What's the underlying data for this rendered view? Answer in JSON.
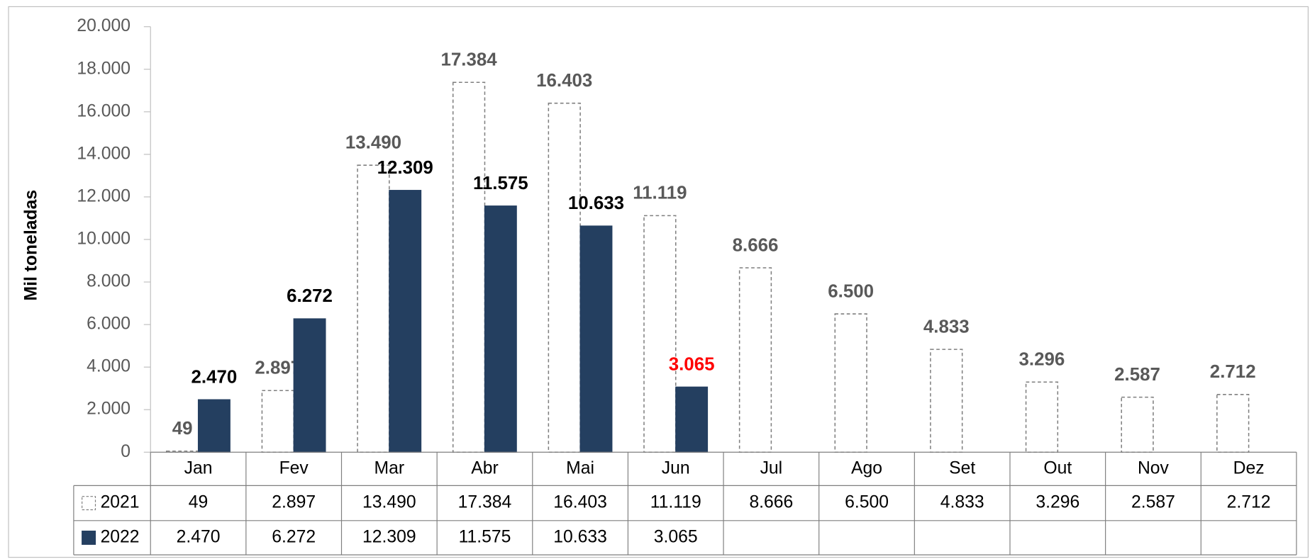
{
  "chart_data": {
    "type": "bar",
    "y_label": "Mil toneladas",
    "categories": [
      "Jan",
      "Fev",
      "Mar",
      "Abr",
      "Mai",
      "Jun",
      "Jul",
      "Ago",
      "Set",
      "Out",
      "Nov",
      "Dez"
    ],
    "series": [
      {
        "name": "2021",
        "color": "#ffffff",
        "stroke": "#7f7f7f",
        "dashed": true,
        "label_color": "#595959",
        "values": [
          49,
          2897,
          13490,
          17384,
          16403,
          11119,
          8666,
          6500,
          4833,
          3296,
          2587,
          2712
        ],
        "value_labels": [
          "49",
          "2.897",
          "13.490",
          "17.384",
          "16.403",
          "11.119",
          "8.666",
          "6.500",
          "4.833",
          "3.296",
          "2.587",
          "2.712"
        ]
      },
      {
        "name": "2022",
        "color": "#243f60",
        "stroke": "#243f60",
        "dashed": false,
        "label_color": "#000000",
        "label_colors": [
          null,
          null,
          null,
          null,
          null,
          "#ff0000",
          null,
          null,
          null,
          null,
          null,
          null
        ],
        "values": [
          2470,
          6272,
          12309,
          11575,
          10633,
          3065,
          null,
          null,
          null,
          null,
          null,
          null
        ],
        "value_labels": [
          "2.470",
          "6.272",
          "12.309",
          "11.575",
          "10.633",
          "3.065",
          null,
          null,
          null,
          null,
          null,
          null
        ]
      }
    ],
    "ylim": [
      0,
      20000
    ],
    "yticks": [
      0,
      {
        "value": 2000,
        "label": "2.000"
      },
      {
        "value": 4000,
        "label": "4.000"
      },
      {
        "value": 6000,
        "label": "6.000"
      },
      {
        "value": 8000,
        "label": "8.000"
      },
      {
        "value": 10000,
        "label": "10.000"
      },
      {
        "value": 12000,
        "label": "12.000"
      },
      {
        "value": 14000,
        "label": "14.000"
      },
      {
        "value": 16000,
        "label": "16.000"
      },
      {
        "value": 18000,
        "label": "18.000"
      },
      {
        "value": 20000,
        "label": "20.000"
      }
    ],
    "data_table": true
  }
}
